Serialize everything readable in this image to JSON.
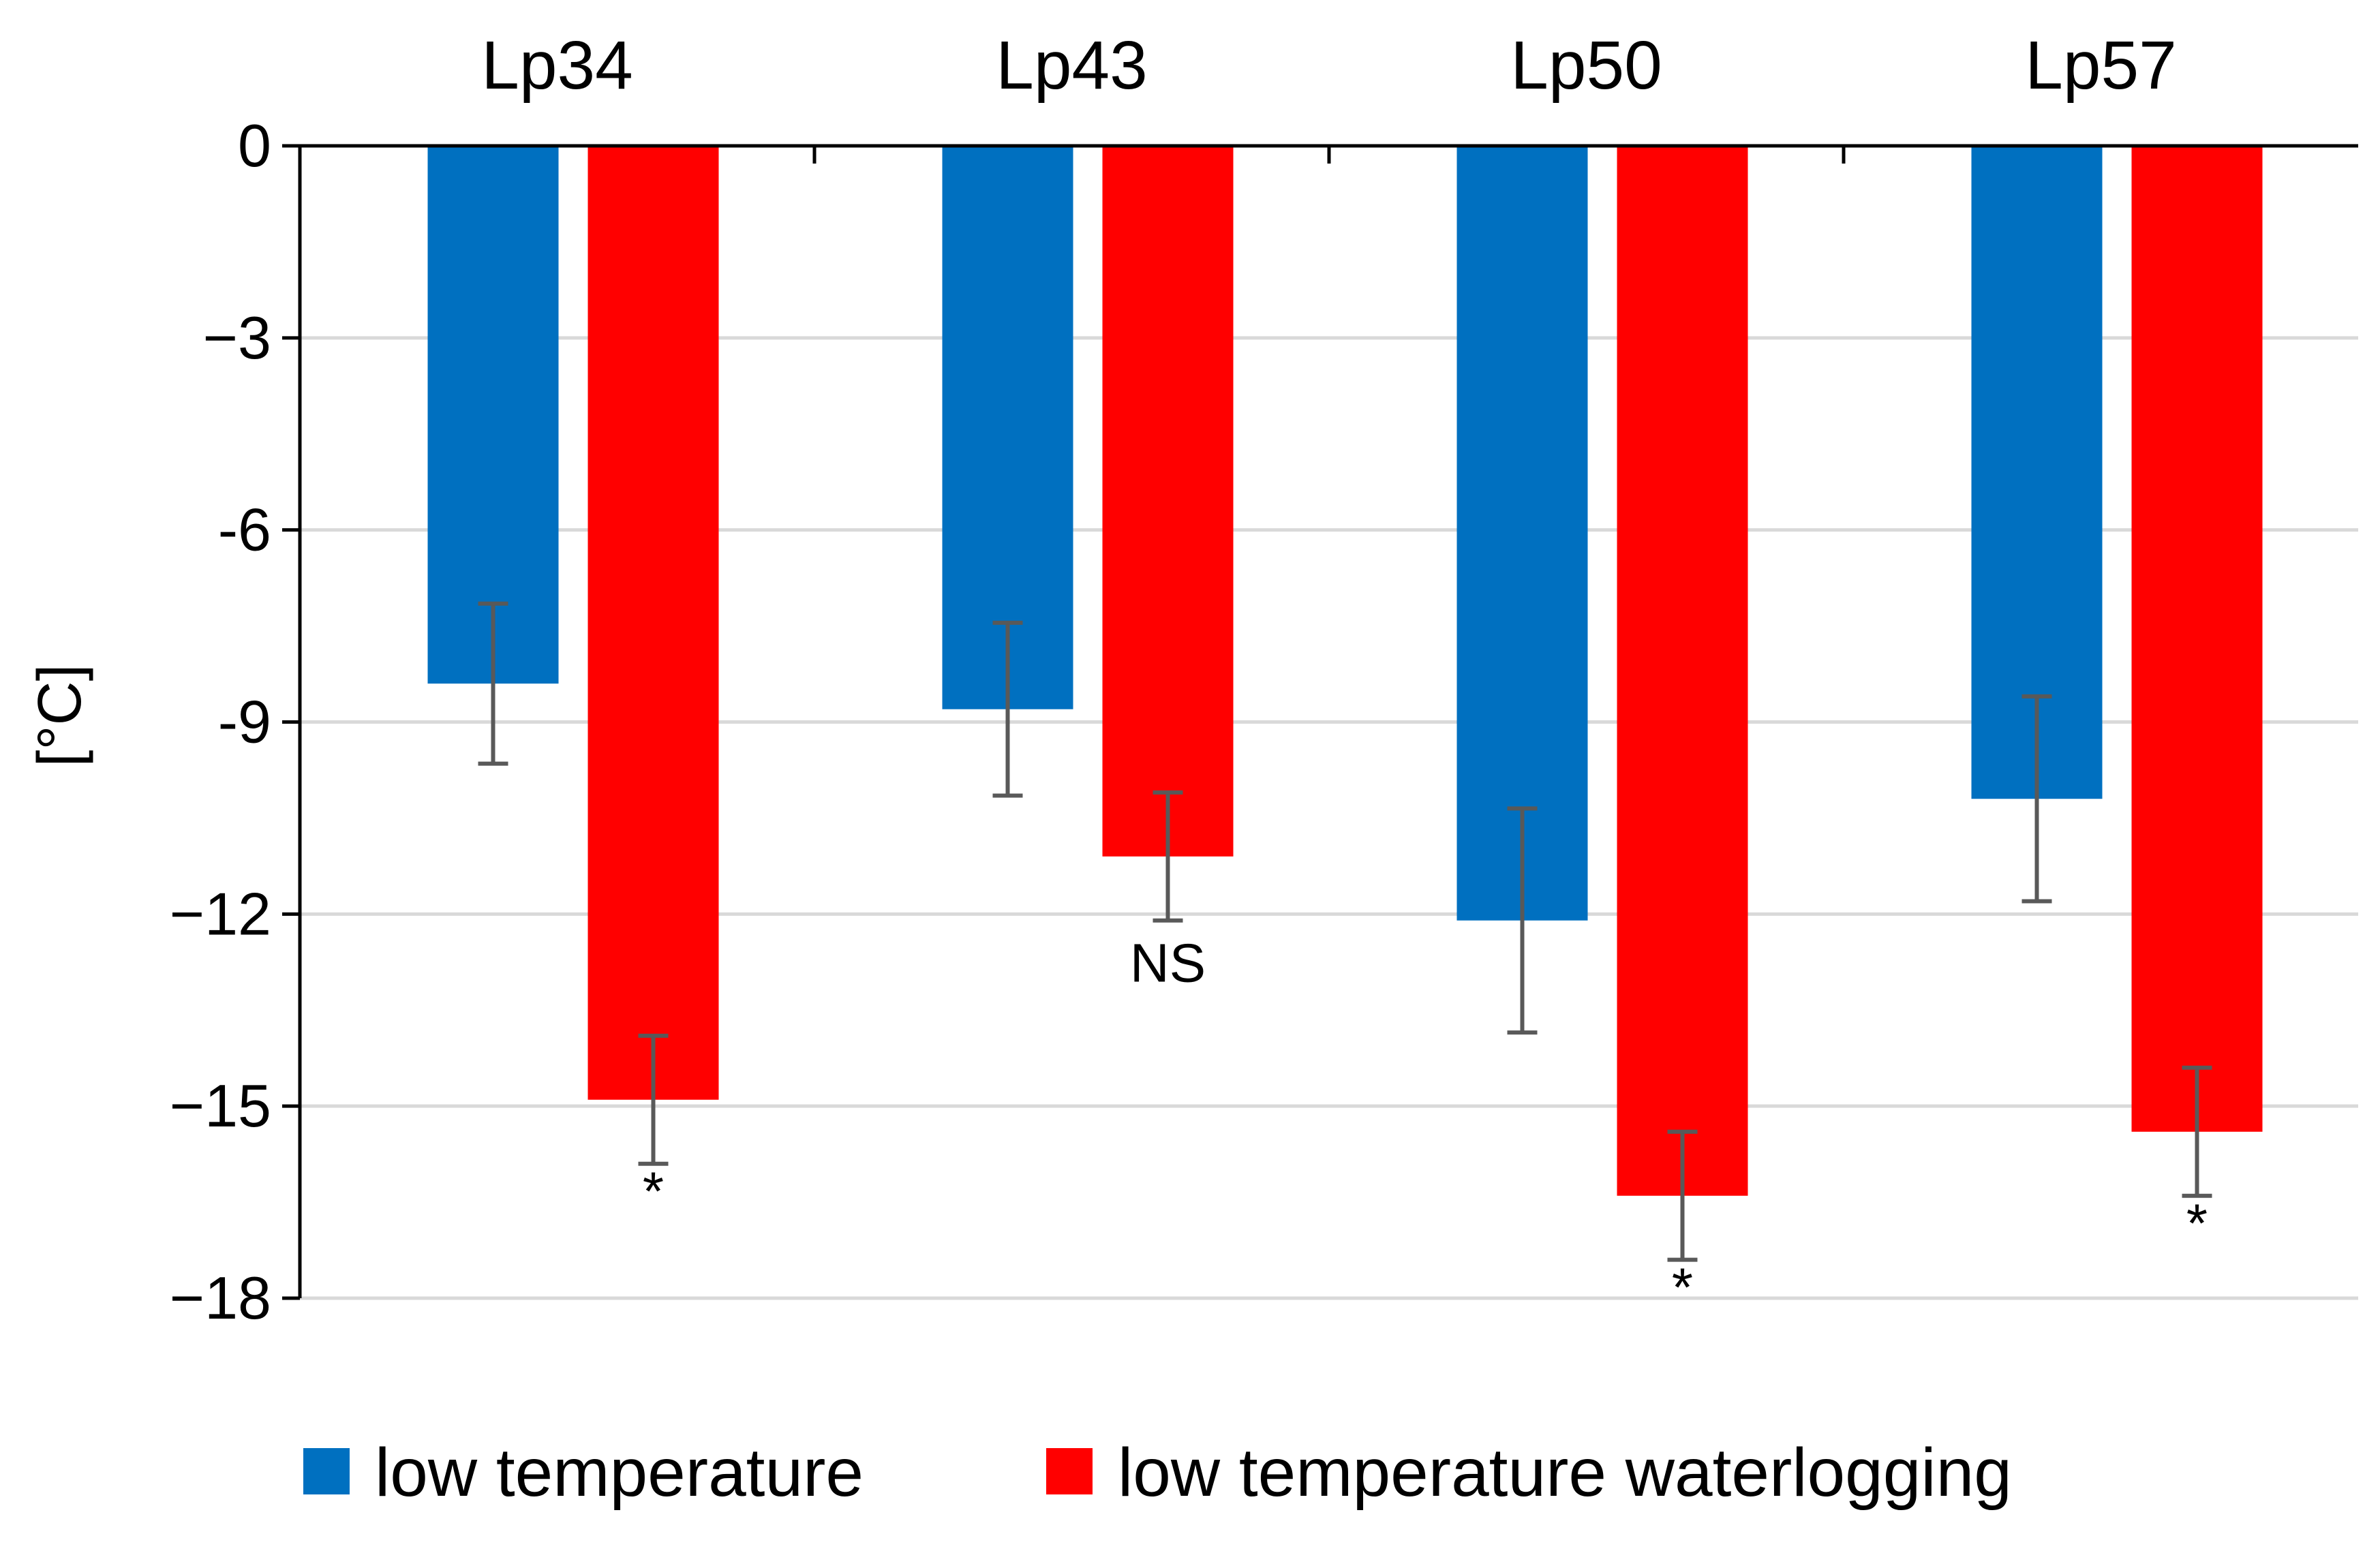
{
  "chart_data": {
    "type": "bar",
    "title": "",
    "xlabel": "",
    "ylabel": "[°C]",
    "categories": [
      "Lp34",
      "Lp43",
      "Lp50",
      "Lp57"
    ],
    "series": [
      {
        "name": "low temperature",
        "color": "#0070c0",
        "values": [
          -8.4,
          -8.8,
          -12.1,
          -10.2
        ],
        "error": [
          1.25,
          1.35,
          1.75,
          1.6
        ]
      },
      {
        "name": "low temperature waterlogging",
        "color": "#ff0000",
        "values": [
          -14.9,
          -11.1,
          -16.4,
          -15.4
        ],
        "error": [
          1.0,
          1.0,
          1.0,
          1.0
        ]
      }
    ],
    "annotations": [
      "*",
      "NS",
      "*",
      "*"
    ],
    "yticks": [
      0,
      -3,
      -6,
      -9,
      -12,
      -15,
      -18
    ],
    "ytick_labels": [
      "0",
      "−3",
      "-6",
      "-9",
      "−12",
      "−15",
      "−18"
    ],
    "ylim": [
      -18,
      0
    ],
    "grid": true,
    "legend_position": "bottom",
    "error_color": "#595959",
    "grid_color": "#d9d9d9"
  }
}
